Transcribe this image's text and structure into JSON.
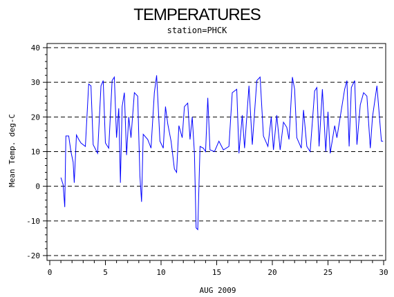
{
  "chart_data": {
    "type": "line",
    "title": "TEMPERATURES",
    "subtitle": "station=PHCK",
    "xlabel": "AUG 2009",
    "ylabel": "Mean Temp. deg-C",
    "xlim": [
      0,
      30
    ],
    "ylim": [
      -20,
      40
    ],
    "x_ticks": [
      0,
      5,
      10,
      15,
      20,
      25,
      30
    ],
    "y_ticks": [
      -20,
      -10,
      0,
      10,
      20,
      30,
      40
    ],
    "grid": "horizontal dashed at major y ticks",
    "line_color": "#0000ff",
    "series": [
      {
        "values": [
          [
            1.0,
            2.5
          ],
          [
            1.2,
            0.5
          ],
          [
            1.35,
            -6.0
          ],
          [
            1.45,
            14.5
          ],
          [
            1.7,
            14.5
          ],
          [
            1.9,
            10.0
          ],
          [
            2.1,
            7.0
          ],
          [
            2.2,
            1.0
          ],
          [
            2.4,
            14.8
          ],
          [
            2.6,
            13.5
          ],
          [
            2.8,
            12.5
          ],
          [
            3.2,
            11.5
          ],
          [
            3.5,
            29.5
          ],
          [
            3.7,
            29.0
          ],
          [
            3.9,
            12.0
          ],
          [
            4.3,
            9.5
          ],
          [
            4.6,
            29.0
          ],
          [
            4.8,
            30.5
          ],
          [
            5.0,
            12.5
          ],
          [
            5.3,
            11.0
          ],
          [
            5.6,
            30.5
          ],
          [
            5.8,
            31.5
          ],
          [
            6.0,
            14.0
          ],
          [
            6.2,
            22.5
          ],
          [
            6.35,
            1.0
          ],
          [
            6.5,
            23.0
          ],
          [
            6.7,
            27.0
          ],
          [
            6.9,
            9.0
          ],
          [
            7.1,
            20.0
          ],
          [
            7.3,
            14.0
          ],
          [
            7.6,
            27.0
          ],
          [
            7.9,
            26.0
          ],
          [
            8.1,
            3.0
          ],
          [
            8.25,
            -4.5
          ],
          [
            8.4,
            15.0
          ],
          [
            8.8,
            13.5
          ],
          [
            9.1,
            11.0
          ],
          [
            9.4,
            27.0
          ],
          [
            9.6,
            32.0
          ],
          [
            9.9,
            13.0
          ],
          [
            10.2,
            11.0
          ],
          [
            10.4,
            23.0
          ],
          [
            10.6,
            18.0
          ],
          [
            10.9,
            13.0
          ],
          [
            11.2,
            5.0
          ],
          [
            11.4,
            4.0
          ],
          [
            11.6,
            17.5
          ],
          [
            11.9,
            14.0
          ],
          [
            12.1,
            23.0
          ],
          [
            12.4,
            24.0
          ],
          [
            12.6,
            13.5
          ],
          [
            12.8,
            20.0
          ],
          [
            13.0,
            9.5
          ],
          [
            13.15,
            -12.0
          ],
          [
            13.3,
            -12.5
          ],
          [
            13.5,
            11.5
          ],
          [
            13.8,
            11.0
          ],
          [
            14.0,
            10.0
          ],
          [
            14.2,
            25.5
          ],
          [
            14.4,
            10.5
          ],
          [
            14.8,
            10.0
          ],
          [
            15.2,
            13.0
          ],
          [
            15.6,
            10.5
          ],
          [
            16.1,
            11.5
          ],
          [
            16.4,
            27.0
          ],
          [
            16.8,
            28.0
          ],
          [
            17.0,
            9.5
          ],
          [
            17.3,
            20.5
          ],
          [
            17.5,
            11.0
          ],
          [
            17.9,
            29.0
          ],
          [
            18.2,
            12.0
          ],
          [
            18.6,
            30.5
          ],
          [
            18.9,
            31.5
          ],
          [
            19.2,
            14.5
          ],
          [
            19.6,
            11.5
          ],
          [
            19.9,
            20.0
          ],
          [
            20.1,
            10.5
          ],
          [
            20.4,
            20.5
          ],
          [
            20.7,
            10.5
          ],
          [
            21.0,
            18.5
          ],
          [
            21.3,
            17.0
          ],
          [
            21.5,
            13.5
          ],
          [
            21.8,
            31.5
          ],
          [
            22.0,
            28.0
          ],
          [
            22.2,
            14.0
          ],
          [
            22.6,
            11.0
          ],
          [
            22.8,
            22.0
          ],
          [
            23.1,
            11.5
          ],
          [
            23.4,
            10.0
          ],
          [
            23.8,
            27.5
          ],
          [
            24.0,
            28.5
          ],
          [
            24.2,
            11.5
          ],
          [
            24.5,
            28.0
          ],
          [
            24.8,
            10.0
          ],
          [
            25.0,
            21.5
          ],
          [
            25.2,
            9.5
          ],
          [
            25.6,
            17.5
          ],
          [
            25.8,
            14.0
          ],
          [
            26.1,
            20.0
          ],
          [
            26.5,
            28.0
          ],
          [
            26.7,
            30.5
          ],
          [
            26.9,
            11.5
          ],
          [
            27.1,
            28.5
          ],
          [
            27.4,
            30.5
          ],
          [
            27.6,
            12.0
          ],
          [
            27.9,
            23.5
          ],
          [
            28.2,
            27.0
          ],
          [
            28.5,
            26.0
          ],
          [
            28.8,
            11.0
          ],
          [
            29.0,
            20.0
          ],
          [
            29.4,
            29.0
          ],
          [
            29.8,
            13.0
          ],
          [
            29.95,
            13.0
          ]
        ]
      }
    ]
  }
}
